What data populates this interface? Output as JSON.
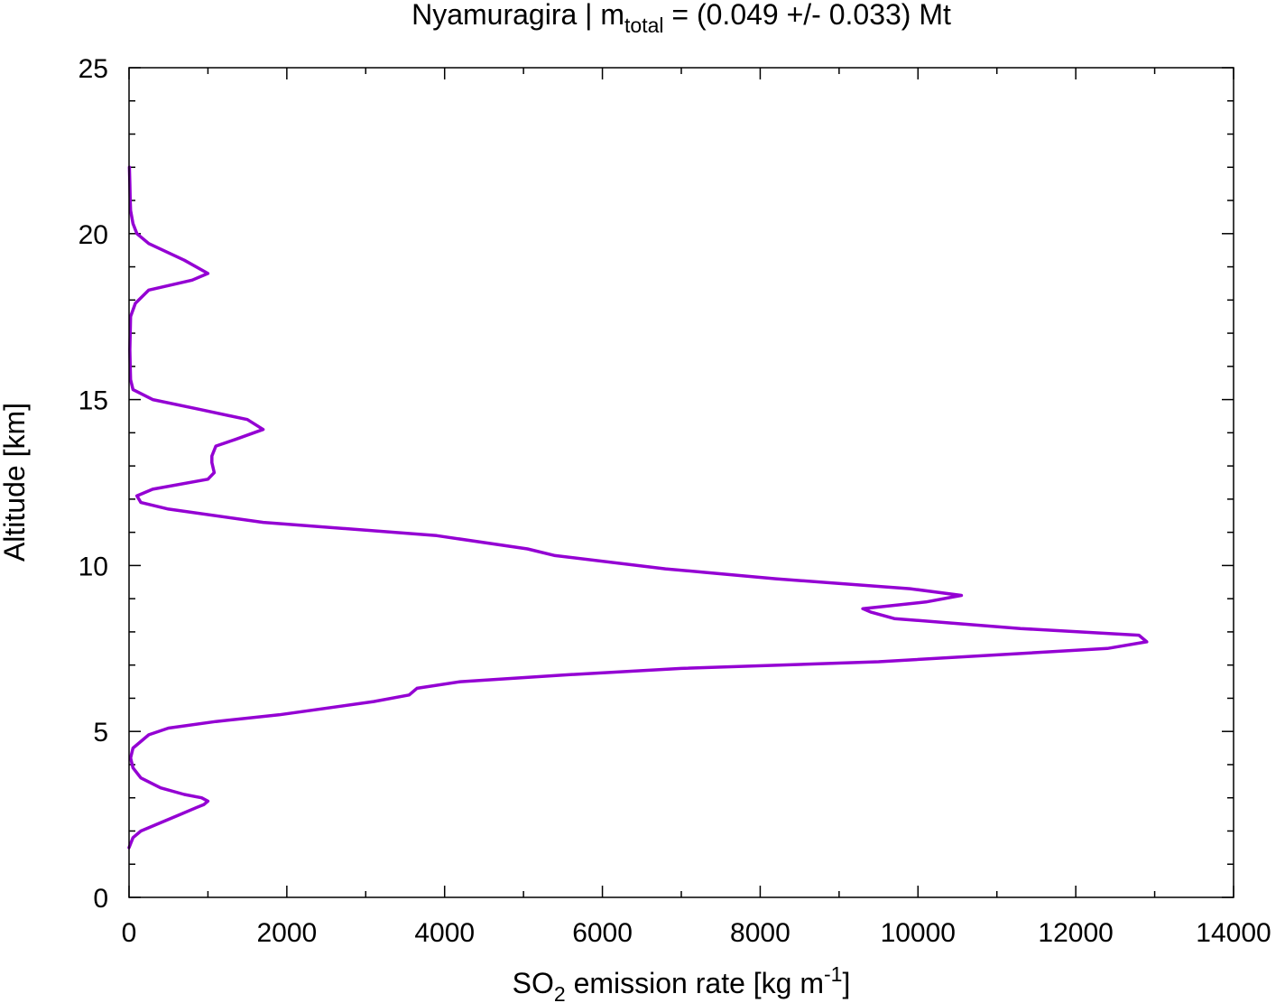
{
  "chart_data": {
    "type": "line",
    "title_parts": {
      "prefix": "Nyamuragira | m",
      "subscript": "total",
      "suffix": " = (0.049 +/- 0.033) Mt"
    },
    "xlabel_parts": {
      "prefix": "SO",
      "subscript": "2",
      "middle": " emission rate [kg m",
      "superscript": "-1",
      "suffix": "]"
    },
    "ylabel": "Altitude [km]",
    "xlim": [
      0,
      14000
    ],
    "ylim": [
      0,
      25
    ],
    "x_ticks": [
      0,
      2000,
      4000,
      6000,
      8000,
      10000,
      12000,
      14000
    ],
    "y_ticks": [
      0,
      5,
      10,
      15,
      20,
      25
    ],
    "x_tick_labels": [
      "0",
      "2000",
      "4000",
      "6000",
      "8000",
      "10000",
      "12000",
      "14000"
    ],
    "y_tick_labels": [
      "0",
      "5",
      "10",
      "15",
      "20",
      "25"
    ],
    "grid": false,
    "line_color": "#9400d3",
    "series": [
      {
        "values": [
          [
            0,
            1.5
          ],
          [
            50,
            1.8
          ],
          [
            150,
            2.0
          ],
          [
            350,
            2.2
          ],
          [
            650,
            2.5
          ],
          [
            850,
            2.7
          ],
          [
            950,
            2.8
          ],
          [
            1000,
            2.9
          ],
          [
            920,
            3.0
          ],
          [
            700,
            3.1
          ],
          [
            400,
            3.3
          ],
          [
            150,
            3.6
          ],
          [
            50,
            3.9
          ],
          [
            20,
            4.2
          ],
          [
            50,
            4.5
          ],
          [
            250,
            4.9
          ],
          [
            500,
            5.1
          ],
          [
            1100,
            5.3
          ],
          [
            1900,
            5.5
          ],
          [
            3100,
            5.9
          ],
          [
            3550,
            6.1
          ],
          [
            3650,
            6.3
          ],
          [
            4200,
            6.5
          ],
          [
            5500,
            6.7
          ],
          [
            7000,
            6.9
          ],
          [
            9500,
            7.1
          ],
          [
            12400,
            7.5
          ],
          [
            12900,
            7.7
          ],
          [
            12800,
            7.9
          ],
          [
            11300,
            8.1
          ],
          [
            9700,
            8.4
          ],
          [
            9400,
            8.6
          ],
          [
            9300,
            8.7
          ],
          [
            10100,
            8.9
          ],
          [
            10550,
            9.1
          ],
          [
            9900,
            9.3
          ],
          [
            8200,
            9.6
          ],
          [
            6800,
            9.9
          ],
          [
            5400,
            10.3
          ],
          [
            5050,
            10.5
          ],
          [
            3900,
            10.9
          ],
          [
            1700,
            11.3
          ],
          [
            500,
            11.7
          ],
          [
            150,
            11.9
          ],
          [
            100,
            12.1
          ],
          [
            300,
            12.3
          ],
          [
            1000,
            12.6
          ],
          [
            1080,
            12.8
          ],
          [
            1050,
            13.1
          ],
          [
            1050,
            13.3
          ],
          [
            1100,
            13.6
          ],
          [
            1350,
            13.8
          ],
          [
            1700,
            14.1
          ],
          [
            1500,
            14.4
          ],
          [
            900,
            14.7
          ],
          [
            300,
            15.0
          ],
          [
            50,
            15.3
          ],
          [
            20,
            15.6
          ],
          [
            15,
            16.0
          ],
          [
            10,
            16.5
          ],
          [
            15,
            17.0
          ],
          [
            20,
            17.5
          ],
          [
            80,
            17.9
          ],
          [
            250,
            18.3
          ],
          [
            800,
            18.6
          ],
          [
            1000,
            18.8
          ],
          [
            700,
            19.2
          ],
          [
            250,
            19.7
          ],
          [
            100,
            20.0
          ],
          [
            50,
            20.3
          ],
          [
            20,
            20.7
          ],
          [
            15,
            21.0
          ],
          [
            10,
            21.5
          ],
          [
            5,
            22.0
          ]
        ]
      }
    ]
  }
}
